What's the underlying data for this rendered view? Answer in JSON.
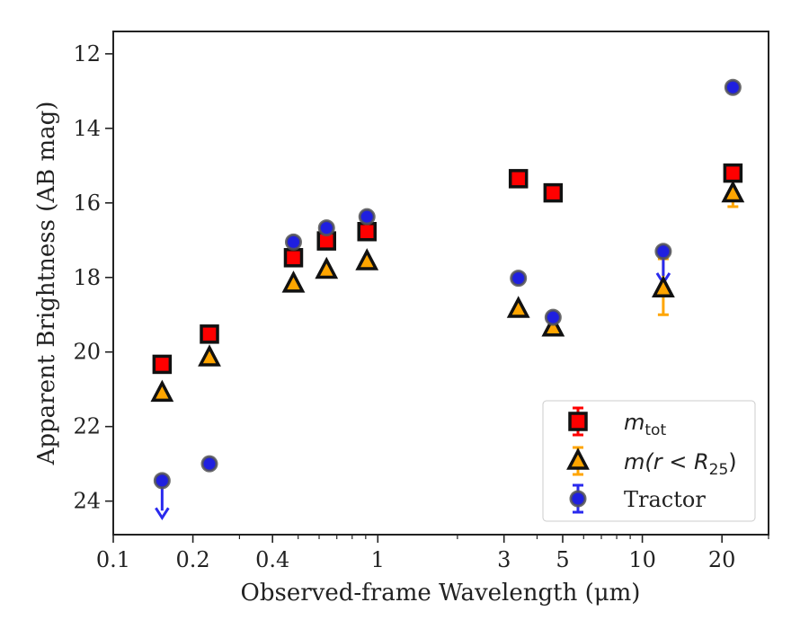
{
  "chart_data": {
    "type": "scatter",
    "xlabel": "Observed-frame Wavelength (μm)",
    "ylabel": "Apparent Brightness (AB mag)",
    "xscale": "log",
    "xlim": [
      0.1,
      30
    ],
    "ylim": [
      24.9,
      11.4
    ],
    "y_inverted": true,
    "x_ticks": [
      0.1,
      0.2,
      0.4,
      1,
      3,
      5,
      10,
      20
    ],
    "x_tick_labels": [
      "0.1",
      "0.2",
      "0.4",
      "1",
      "3",
      "5",
      "10",
      "20"
    ],
    "y_ticks": [
      12,
      14,
      16,
      18,
      20,
      22,
      24
    ],
    "y_tick_labels": [
      "12",
      "14",
      "16",
      "18",
      "20",
      "22",
      "24"
    ],
    "legend_position": "lower-right",
    "series": [
      {
        "name": "m_tot",
        "legend_main": "m",
        "legend_sub": "tot",
        "marker": "square",
        "color": "#ff0000",
        "edge_color": "#111111",
        "error_color": "#ff0000",
        "points": [
          {
            "x": 0.153,
            "y": 20.33
          },
          {
            "x": 0.231,
            "y": 19.52
          },
          {
            "x": 0.48,
            "y": 17.47
          },
          {
            "x": 0.64,
            "y": 17.02
          },
          {
            "x": 0.91,
            "y": 16.77
          },
          {
            "x": 3.4,
            "y": 15.35
          },
          {
            "x": 4.6,
            "y": 15.73
          },
          {
            "x": 22.0,
            "y": 15.2
          }
        ]
      },
      {
        "name": "m(r < R_25)",
        "legend_main": "m(r < R",
        "legend_sub": "25",
        "legend_close": ")",
        "marker": "triangle",
        "color": "#ffa500",
        "edge_color": "#111111",
        "error_color": "#ffa500",
        "points": [
          {
            "x": 0.153,
            "y": 21.1
          },
          {
            "x": 0.231,
            "y": 20.15
          },
          {
            "x": 0.48,
            "y": 18.17
          },
          {
            "x": 0.64,
            "y": 17.8
          },
          {
            "x": 0.91,
            "y": 17.57
          },
          {
            "x": 3.4,
            "y": 18.85
          },
          {
            "x": 4.6,
            "y": 19.35
          },
          {
            "x": 12.0,
            "y": 18.3,
            "err_low": 18.3,
            "err_high": 19.0,
            "err_top": 17.5
          },
          {
            "x": 22.0,
            "y": 15.75,
            "err_high": 16.1
          }
        ]
      },
      {
        "name": "Tractor",
        "marker": "circle",
        "color": "#1f1fe0",
        "edge_color": "#555555",
        "error_color": "#2a2aee",
        "points": [
          {
            "x": 0.153,
            "y": 23.45,
            "upper_limit": true,
            "arrow_to": 24.4
          },
          {
            "x": 0.231,
            "y": 23.0
          },
          {
            "x": 0.48,
            "y": 17.05
          },
          {
            "x": 0.64,
            "y": 16.67
          },
          {
            "x": 0.91,
            "y": 16.37
          },
          {
            "x": 3.4,
            "y": 18.02
          },
          {
            "x": 4.6,
            "y": 19.07
          },
          {
            "x": 12.0,
            "y": 17.3,
            "upper_limit": true,
            "arrow_to": 18.1
          },
          {
            "x": 22.0,
            "y": 12.9
          }
        ]
      }
    ]
  }
}
